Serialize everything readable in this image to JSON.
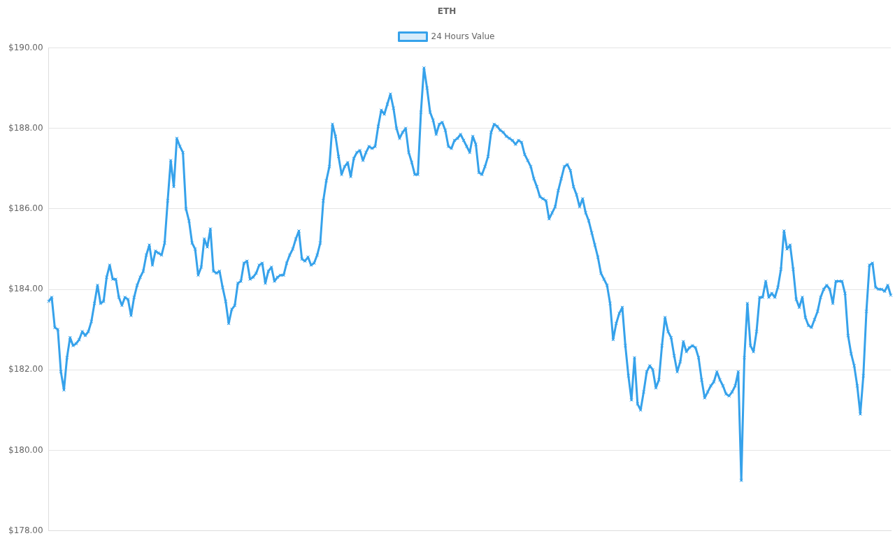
{
  "chart_data": {
    "type": "line",
    "title": "ETH",
    "legend": "top",
    "grid": "y",
    "marker": "cross",
    "line_style": "solid",
    "ylim": [
      178,
      190
    ],
    "yticks": [
      {
        "value": 178,
        "label": "$178.00"
      },
      {
        "value": 180,
        "label": "$180.00"
      },
      {
        "value": 182,
        "label": "$182.00"
      },
      {
        "value": 184,
        "label": "$184.00"
      },
      {
        "value": 186,
        "label": "$186.00"
      },
      {
        "value": 188,
        "label": "$188.00"
      },
      {
        "value": 190,
        "label": "$190.00"
      }
    ],
    "categories": [
      null,
      null,
      null,
      null,
      null,
      null,
      null,
      null,
      null,
      null,
      null,
      null,
      null,
      null,
      null,
      null,
      null,
      null,
      null,
      null,
      null,
      null,
      null,
      null,
      null,
      null,
      null,
      null,
      null,
      null,
      null,
      null,
      null,
      null,
      null,
      null,
      null,
      null,
      null,
      null,
      null,
      null,
      null,
      null,
      null,
      null,
      null,
      null,
      null,
      null,
      null,
      null,
      null,
      null,
      null,
      null,
      null,
      null,
      null,
      null,
      null,
      null,
      null,
      null,
      null,
      null,
      null,
      null,
      null,
      null,
      null,
      null,
      null,
      null,
      null,
      null,
      null,
      null,
      null,
      null,
      null,
      null,
      null,
      null,
      null,
      null,
      null,
      null,
      null,
      null,
      null,
      null,
      null,
      null,
      null,
      null,
      null,
      null,
      null,
      null,
      null,
      null,
      null,
      null,
      null,
      null,
      null,
      null,
      null,
      null,
      null,
      null,
      null,
      null,
      null,
      null,
      null,
      null,
      null,
      null,
      null,
      null,
      null,
      null,
      null,
      null,
      null,
      null,
      null,
      null,
      null,
      null,
      null,
      null,
      null,
      null,
      null,
      null,
      null,
      null,
      null,
      null,
      null,
      null,
      null,
      null,
      null,
      null,
      null,
      null,
      null,
      null,
      null,
      null,
      null,
      null,
      null,
      null,
      null,
      null,
      null,
      null,
      null,
      null,
      null,
      null,
      null,
      null,
      null,
      null,
      null,
      null,
      null,
      null,
      null,
      null,
      null,
      null,
      null,
      null,
      null,
      null,
      null,
      null,
      null,
      null,
      null,
      null,
      null,
      null,
      null,
      null,
      null,
      null,
      null,
      null,
      null,
      null,
      null,
      null,
      null,
      null,
      null,
      null,
      null,
      null,
      null,
      null,
      null,
      null,
      null,
      null,
      null,
      null,
      null,
      null,
      null,
      null,
      null,
      null,
      null,
      null,
      null,
      null,
      null,
      null,
      null,
      null,
      null,
      null,
      null,
      null,
      null,
      null,
      null,
      null,
      null,
      null,
      null,
      null,
      null,
      null,
      null,
      null,
      null,
      null,
      null,
      null,
      null,
      null,
      null,
      null,
      null,
      null,
      null,
      null,
      null,
      null,
      null,
      null,
      null,
      null,
      null,
      null,
      null,
      null,
      null,
      null,
      null,
      null,
      null,
      null,
      null,
      null,
      null,
      null,
      null
    ],
    "series": [
      {
        "name": "24 Hours Value",
        "color": "#36a2eb",
        "values": [
          183.7,
          183.8,
          183.05,
          183.0,
          181.95,
          181.5,
          182.3,
          182.8,
          182.6,
          182.65,
          182.75,
          182.95,
          182.85,
          182.95,
          183.2,
          183.65,
          184.1,
          183.65,
          183.7,
          184.3,
          184.6,
          184.25,
          184.25,
          183.8,
          183.6,
          183.8,
          183.75,
          183.35,
          183.8,
          184.1,
          184.3,
          184.45,
          184.85,
          185.1,
          184.6,
          184.95,
          184.9,
          184.85,
          185.15,
          186.2,
          187.2,
          186.55,
          187.75,
          187.55,
          187.4,
          186.0,
          185.7,
          185.15,
          185.0,
          184.35,
          184.55,
          185.25,
          185.05,
          185.5,
          184.45,
          184.4,
          184.45,
          184.05,
          183.7,
          183.15,
          183.5,
          183.6,
          184.15,
          184.2,
          184.65,
          184.7,
          184.25,
          184.3,
          184.4,
          184.6,
          184.65,
          184.15,
          184.45,
          184.55,
          184.2,
          184.3,
          184.35,
          184.35,
          184.65,
          184.85,
          185.0,
          185.25,
          185.45,
          184.75,
          184.7,
          184.8,
          184.6,
          184.65,
          184.85,
          185.15,
          186.2,
          186.7,
          187.05,
          188.1,
          187.8,
          187.3,
          186.85,
          187.05,
          187.15,
          186.8,
          187.25,
          187.4,
          187.45,
          187.2,
          187.4,
          187.55,
          187.5,
          187.55,
          188.05,
          188.45,
          188.35,
          188.6,
          188.85,
          188.5,
          188.0,
          187.75,
          187.9,
          188.0,
          187.4,
          187.15,
          186.85,
          186.85,
          188.4,
          189.5,
          189.0,
          188.4,
          188.2,
          187.85,
          188.1,
          188.15,
          187.95,
          187.55,
          187.5,
          187.7,
          187.75,
          187.85,
          187.7,
          187.55,
          187.4,
          187.8,
          187.6,
          186.9,
          186.85,
          187.05,
          187.3,
          187.9,
          188.1,
          188.05,
          187.95,
          187.9,
          187.8,
          187.75,
          187.7,
          187.6,
          187.7,
          187.65,
          187.35,
          187.2,
          187.05,
          186.75,
          186.55,
          186.3,
          186.25,
          186.2,
          185.75,
          185.9,
          186.05,
          186.45,
          186.75,
          187.05,
          187.1,
          186.95,
          186.55,
          186.35,
          186.05,
          186.25,
          185.9,
          185.7,
          185.4,
          185.1,
          184.8,
          184.4,
          184.25,
          184.1,
          183.65,
          182.75,
          183.15,
          183.4,
          183.55,
          182.6,
          181.85,
          181.25,
          182.3,
          181.15,
          181.0,
          181.45,
          181.95,
          182.1,
          182.0,
          181.55,
          181.75,
          182.6,
          183.3,
          182.95,
          182.8,
          182.35,
          181.95,
          182.2,
          182.7,
          182.45,
          182.55,
          182.6,
          182.55,
          182.3,
          181.75,
          181.3,
          181.45,
          181.6,
          181.7,
          181.95,
          181.75,
          181.6,
          181.4,
          181.35,
          181.45,
          181.6,
          181.95,
          179.25,
          182.3,
          183.65,
          182.6,
          182.45,
          182.95,
          183.8,
          183.8,
          184.2,
          183.8,
          183.9,
          183.8,
          184.05,
          184.5,
          185.45,
          185.0,
          185.1,
          184.5,
          183.75,
          183.55,
          183.8,
          183.3,
          183.1,
          183.05,
          183.25,
          183.45,
          183.8,
          184.0,
          184.1,
          184.0,
          183.65,
          184.2,
          184.2,
          184.2,
          183.9,
          182.85,
          182.4,
          182.1,
          181.6,
          180.9,
          181.85,
          183.45,
          184.6,
          184.65,
          184.05,
          184.0,
          184.0,
          183.95,
          184.1,
          183.85
        ]
      }
    ]
  }
}
